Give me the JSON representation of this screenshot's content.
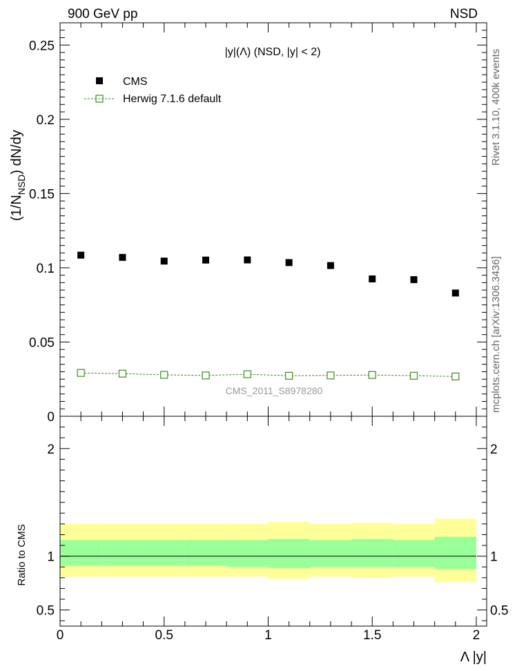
{
  "header": {
    "left": "900 GeV pp",
    "right": "NSD"
  },
  "side_labels": {
    "rivet": "Rivet 3.1.10,  400k events",
    "mcplots": "mcplots.cern.ch [arXiv:1306.3436]"
  },
  "chart_data": {
    "type": "scatter",
    "title": "|y|(Λ) (NSD, |y| < 2)",
    "xlabel": "Λ |y|",
    "ylabel_main": "(1/N_NSD) dN/dy",
    "ylabel_ratio": "Ratio to CMS",
    "watermark": "CMS_2011_S8978280",
    "xlim": [
      0,
      2.05
    ],
    "ylim_main": [
      0,
      0.265
    ],
    "ylim_ratio": [
      0.35,
      2.3
    ],
    "x_ticks": [
      0,
      0.5,
      1,
      1.5,
      2
    ],
    "x_tick_labels": [
      "0",
      "0.5",
      "1",
      "1.5",
      "2"
    ],
    "y_ticks_main": [
      0,
      0.05,
      0.1,
      0.15,
      0.2,
      0.25
    ],
    "y_tick_labels_main": [
      "0",
      "0.05",
      "0.1",
      "0.15",
      "0.2",
      "0.25"
    ],
    "y_ticks_ratio": [
      0.5,
      1,
      2
    ],
    "y_tick_labels_ratio": [
      "0.5",
      "1",
      "2"
    ],
    "legend": {
      "placement": "top-left",
      "entries": [
        "CMS",
        "Herwig 7.1.6 default"
      ]
    },
    "bin_edges": [
      0,
      0.2,
      0.4,
      0.6,
      0.8,
      1.0,
      1.2,
      1.4,
      1.6,
      1.8,
      2.0
    ],
    "x": [
      0.1,
      0.3,
      0.5,
      0.7,
      0.9,
      1.1,
      1.3,
      1.5,
      1.7,
      1.9
    ],
    "series": [
      {
        "name": "CMS",
        "color": "#000000",
        "values": [
          0.1085,
          0.107,
          0.1045,
          0.1052,
          0.1053,
          0.1035,
          0.1015,
          0.0925,
          0.092,
          0.083
        ]
      },
      {
        "name": "Herwig 7.1.6 default",
        "color": "#3a8a1a",
        "values": [
          0.0292,
          0.0287,
          0.0279,
          0.0275,
          0.0283,
          0.0273,
          0.0275,
          0.0278,
          0.0273,
          0.0268
        ]
      }
    ],
    "ratio_bands": {
      "inner_color": "#99ff99",
      "outer_color": "#ffff99",
      "inner_lo": [
        0.91,
        0.91,
        0.91,
        0.91,
        0.9,
        0.89,
        0.9,
        0.9,
        0.9,
        0.88
      ],
      "inner_hi": [
        1.15,
        1.15,
        1.15,
        1.15,
        1.15,
        1.16,
        1.15,
        1.16,
        1.15,
        1.18
      ],
      "outer_lo": [
        0.81,
        0.81,
        0.81,
        0.81,
        0.81,
        0.79,
        0.81,
        0.8,
        0.81,
        0.76
      ],
      "outer_hi": [
        1.3,
        1.3,
        1.3,
        1.3,
        1.3,
        1.32,
        1.3,
        1.31,
        1.3,
        1.35
      ]
    }
  }
}
